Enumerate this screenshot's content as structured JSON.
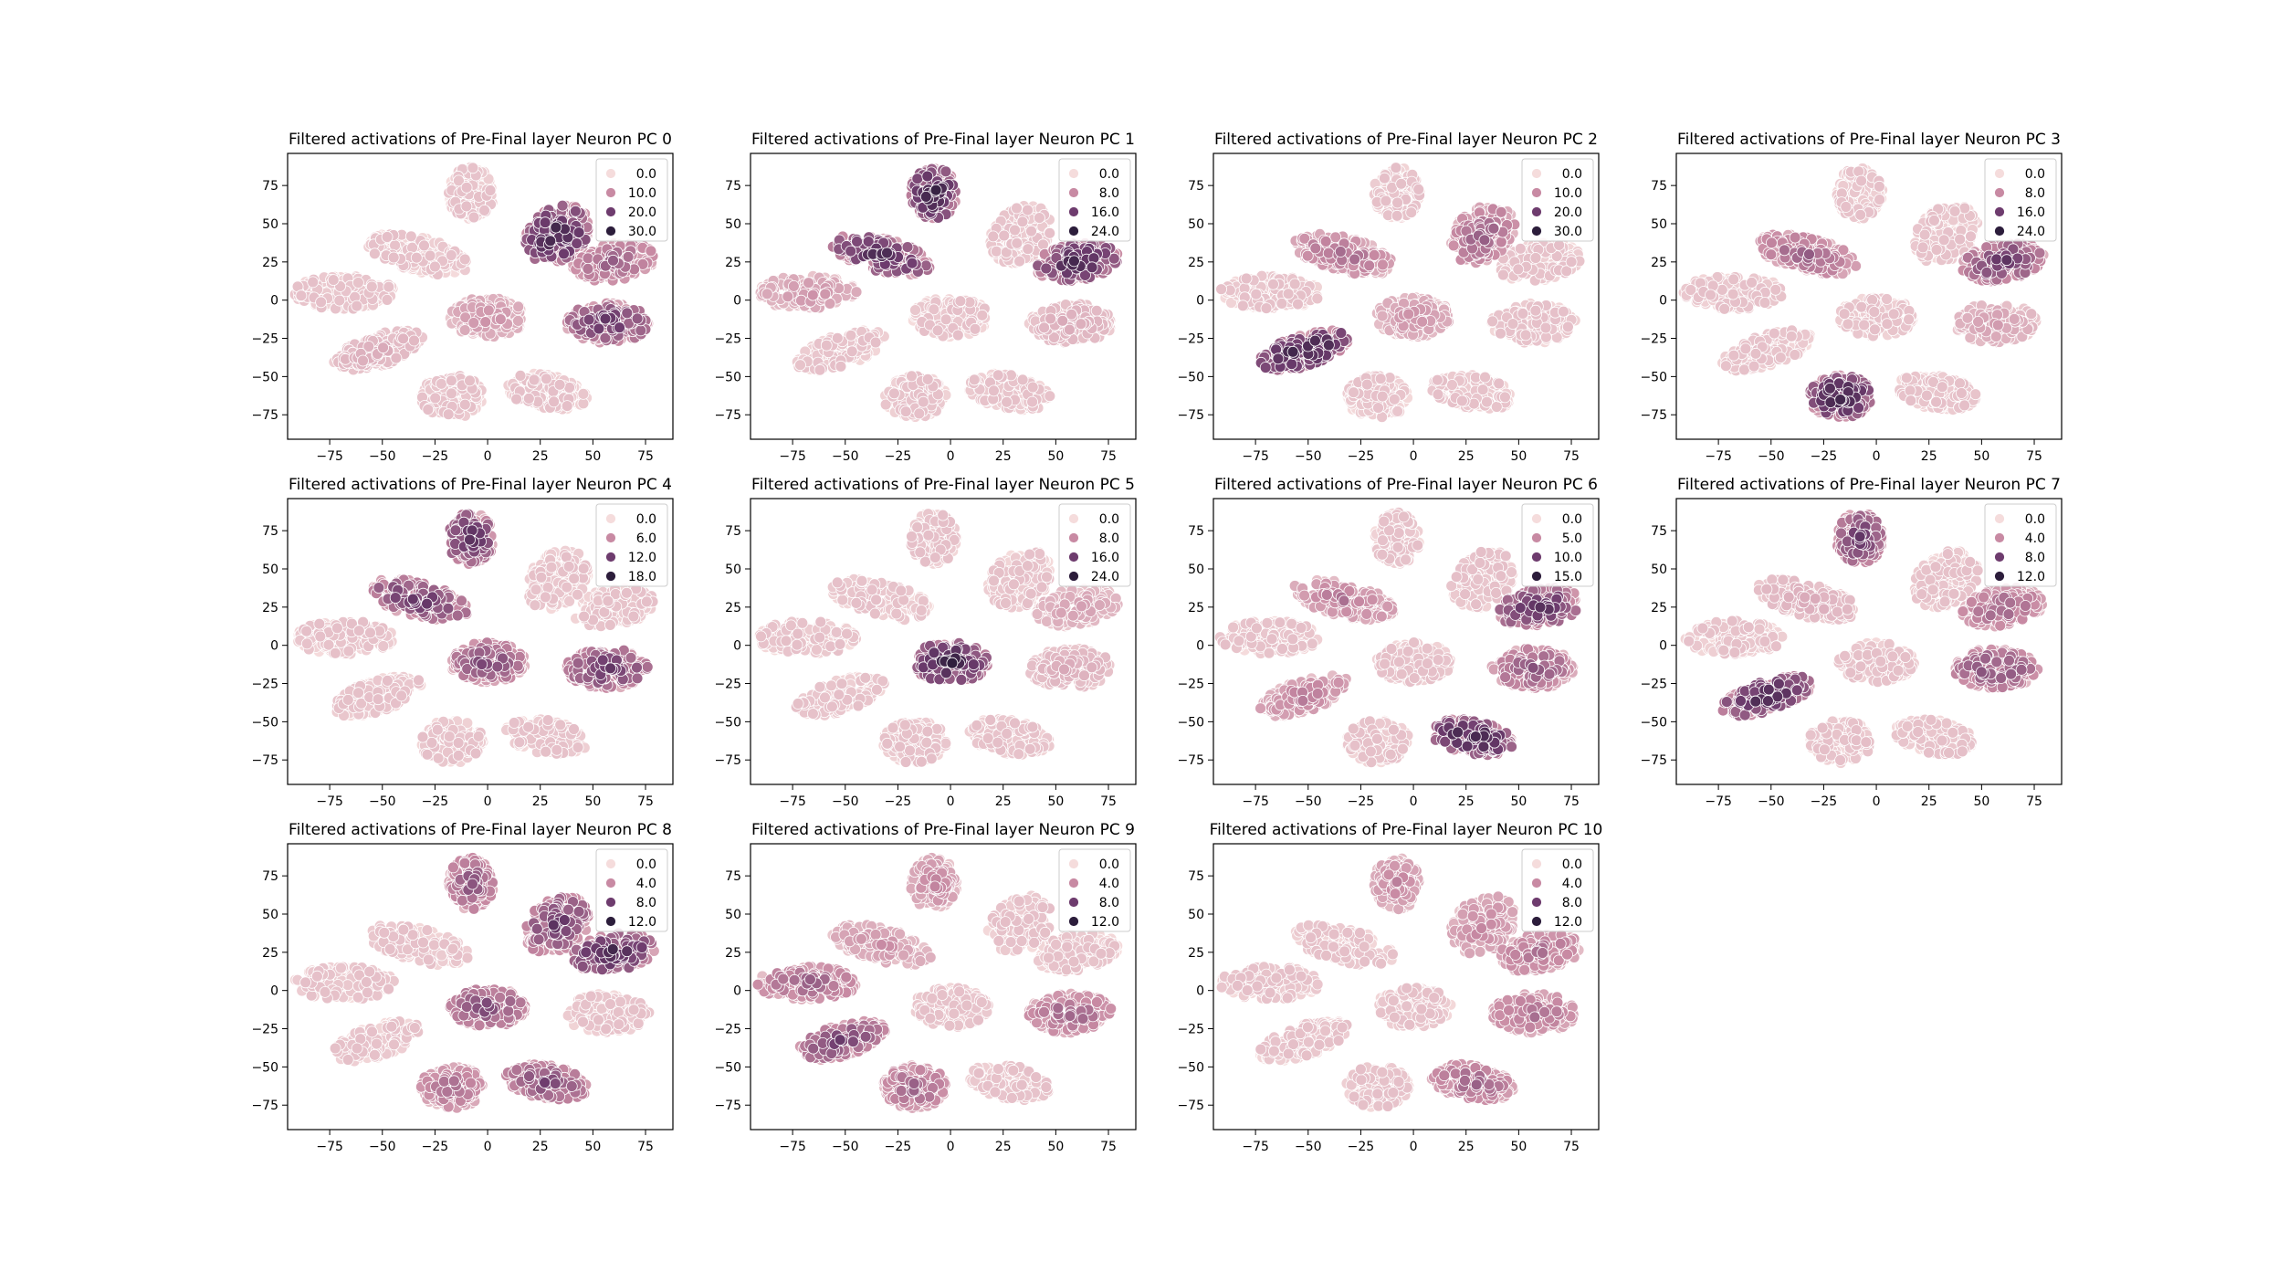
{
  "figure": {
    "columns": 4,
    "rows": 3
  },
  "colors": {
    "palette": [
      "#f5dcdc",
      "#c88aa3",
      "#6e3c6e",
      "#2c1d3b"
    ],
    "point_edge": "#ffffff",
    "axes_edge": "#000000"
  },
  "chart_data": [
    {
      "type": "scatter",
      "title": "Filtered activations of Pre-Final layer Neuron PC 0",
      "xlim": [
        -95,
        88
      ],
      "ylim": [
        -91,
        96
      ],
      "xticks": [
        -75,
        -50,
        -25,
        0,
        25,
        50,
        75
      ],
      "yticks": [
        -75,
        -50,
        -25,
        0,
        25,
        50,
        75
      ],
      "legend": {
        "position": "upper right",
        "entries": [
          "0.0",
          "10.0",
          "20.0",
          "30.0"
        ]
      },
      "hot_clusters": [
        {
          "cluster": 0,
          "level": 0.9
        },
        {
          "cluster": 8,
          "level": 0.5
        },
        {
          "cluster": 9,
          "level": 0.7
        },
        {
          "cluster": 2,
          "level": 0.3
        },
        {
          "cluster": 5,
          "level": 0.2
        }
      ]
    },
    {
      "type": "scatter",
      "title": "Filtered activations of Pre-Final layer Neuron PC 1",
      "xlim": [
        -95,
        88
      ],
      "ylim": [
        -91,
        96
      ],
      "xticks": [
        -75,
        -50,
        -25,
        0,
        25,
        50,
        75
      ],
      "yticks": [
        -75,
        -50,
        -25,
        0,
        25,
        50,
        75
      ],
      "legend": {
        "position": "upper right",
        "entries": [
          "0.0",
          "8.0",
          "16.0",
          "24.0"
        ]
      },
      "hot_clusters": [
        {
          "cluster": 1,
          "level": 0.9
        },
        {
          "cluster": 3,
          "level": 0.8
        },
        {
          "cluster": 8,
          "level": 0.85
        },
        {
          "cluster": 4,
          "level": 0.3
        },
        {
          "cluster": 9,
          "level": 0.2
        }
      ]
    },
    {
      "type": "scatter",
      "title": "Filtered activations of Pre-Final layer Neuron PC 2",
      "xlim": [
        -95,
        88
      ],
      "ylim": [
        -91,
        96
      ],
      "xticks": [
        -75,
        -50,
        -25,
        0,
        25,
        50,
        75
      ],
      "yticks": [
        -75,
        -50,
        -25,
        0,
        25,
        50,
        75
      ],
      "legend": {
        "position": "upper right",
        "entries": [
          "0.0",
          "10.0",
          "20.0",
          "30.0"
        ]
      },
      "hot_clusters": [
        {
          "cluster": 5,
          "level": 0.95
        },
        {
          "cluster": 0,
          "level": 0.5
        },
        {
          "cluster": 3,
          "level": 0.45
        },
        {
          "cluster": 2,
          "level": 0.3
        }
      ]
    },
    {
      "type": "scatter",
      "title": "Filtered activations of Pre-Final layer Neuron PC 3",
      "xlim": [
        -95,
        88
      ],
      "ylim": [
        -91,
        96
      ],
      "xticks": [
        -75,
        -50,
        -25,
        0,
        25,
        50,
        75
      ],
      "yticks": [
        -75,
        -50,
        -25,
        0,
        25,
        50,
        75
      ],
      "legend": {
        "position": "upper right",
        "entries": [
          "0.0",
          "8.0",
          "16.0",
          "24.0"
        ]
      },
      "hot_clusters": [
        {
          "cluster": 6,
          "level": 0.9
        },
        {
          "cluster": 8,
          "level": 0.7
        },
        {
          "cluster": 3,
          "level": 0.5
        },
        {
          "cluster": 9,
          "level": 0.25
        }
      ]
    },
    {
      "type": "scatter",
      "title": "Filtered activations of Pre-Final layer Neuron PC 4",
      "xlim": [
        -95,
        88
      ],
      "ylim": [
        -91,
        96
      ],
      "xticks": [
        -75,
        -50,
        -25,
        0,
        25,
        50,
        75
      ],
      "yticks": [
        -75,
        -50,
        -25,
        0,
        25,
        50,
        75
      ],
      "legend": {
        "position": "upper right",
        "entries": [
          "0.0",
          "6.0",
          "12.0",
          "18.0"
        ]
      },
      "hot_clusters": [
        {
          "cluster": 1,
          "level": 0.75
        },
        {
          "cluster": 3,
          "level": 0.7
        },
        {
          "cluster": 2,
          "level": 0.6
        },
        {
          "cluster": 9,
          "level": 0.7
        }
      ]
    },
    {
      "type": "scatter",
      "title": "Filtered activations of Pre-Final layer Neuron PC 5",
      "xlim": [
        -95,
        88
      ],
      "ylim": [
        -91,
        96
      ],
      "xticks": [
        -75,
        -50,
        -25,
        0,
        25,
        50,
        75
      ],
      "yticks": [
        -75,
        -50,
        -25,
        0,
        25,
        50,
        75
      ],
      "legend": {
        "position": "upper right",
        "entries": [
          "0.0",
          "8.0",
          "16.0",
          "24.0"
        ]
      },
      "hot_clusters": [
        {
          "cluster": 2,
          "level": 0.9
        },
        {
          "cluster": 8,
          "level": 0.25
        },
        {
          "cluster": 9,
          "level": 0.2
        }
      ]
    },
    {
      "type": "scatter",
      "title": "Filtered activations of Pre-Final layer Neuron PC 6",
      "xlim": [
        -95,
        88
      ],
      "ylim": [
        -91,
        96
      ],
      "xticks": [
        -75,
        -50,
        -25,
        0,
        25,
        50,
        75
      ],
      "yticks": [
        -75,
        -50,
        -25,
        0,
        25,
        50,
        75
      ],
      "legend": {
        "position": "upper right",
        "entries": [
          "0.0",
          "5.0",
          "10.0",
          "15.0"
        ]
      },
      "hot_clusters": [
        {
          "cluster": 7,
          "level": 0.9
        },
        {
          "cluster": 8,
          "level": 0.75
        },
        {
          "cluster": 9,
          "level": 0.55
        },
        {
          "cluster": 3,
          "level": 0.4
        },
        {
          "cluster": 5,
          "level": 0.4
        }
      ]
    },
    {
      "type": "scatter",
      "title": "Filtered activations of Pre-Final layer Neuron PC 7",
      "xlim": [
        -95,
        88
      ],
      "ylim": [
        -91,
        96
      ],
      "xticks": [
        -75,
        -50,
        -25,
        0,
        25,
        50,
        75
      ],
      "yticks": [
        -75,
        -50,
        -25,
        0,
        25,
        50,
        75
      ],
      "legend": {
        "position": "upper right",
        "entries": [
          "0.0",
          "4.0",
          "8.0",
          "12.0"
        ]
      },
      "hot_clusters": [
        {
          "cluster": 1,
          "level": 0.7
        },
        {
          "cluster": 5,
          "level": 0.85
        },
        {
          "cluster": 9,
          "level": 0.6
        },
        {
          "cluster": 8,
          "level": 0.5
        },
        {
          "cluster": 3,
          "level": 0.2
        }
      ]
    },
    {
      "type": "scatter",
      "title": "Filtered activations of Pre-Final layer Neuron PC 8",
      "xlim": [
        -95,
        88
      ],
      "ylim": [
        -91,
        96
      ],
      "xticks": [
        -75,
        -50,
        -25,
        0,
        25,
        50,
        75
      ],
      "yticks": [
        -75,
        -50,
        -25,
        0,
        25,
        50,
        75
      ],
      "legend": {
        "position": "upper right",
        "entries": [
          "0.0",
          "4.0",
          "8.0",
          "12.0"
        ]
      },
      "hot_clusters": [
        {
          "cluster": 8,
          "level": 0.85
        },
        {
          "cluster": 0,
          "level": 0.7
        },
        {
          "cluster": 1,
          "level": 0.55
        },
        {
          "cluster": 2,
          "level": 0.6
        },
        {
          "cluster": 7,
          "level": 0.6
        },
        {
          "cluster": 6,
          "level": 0.45
        }
      ]
    },
    {
      "type": "scatter",
      "title": "Filtered activations of Pre-Final layer Neuron PC 9",
      "xlim": [
        -95,
        88
      ],
      "ylim": [
        -91,
        96
      ],
      "xticks": [
        -75,
        -50,
        -25,
        0,
        25,
        50,
        75
      ],
      "yticks": [
        -75,
        -50,
        -25,
        0,
        25,
        50,
        75
      ],
      "legend": {
        "position": "upper right",
        "entries": [
          "0.0",
          "4.0",
          "8.0",
          "12.0"
        ]
      },
      "hot_clusters": [
        {
          "cluster": 4,
          "level": 0.5
        },
        {
          "cluster": 5,
          "level": 0.65
        },
        {
          "cluster": 6,
          "level": 0.5
        },
        {
          "cluster": 9,
          "level": 0.5
        },
        {
          "cluster": 1,
          "level": 0.35
        },
        {
          "cluster": 3,
          "level": 0.3
        }
      ]
    },
    {
      "type": "scatter",
      "title": "Filtered activations of Pre-Final layer Neuron PC 10",
      "xlim": [
        -95,
        88
      ],
      "ylim": [
        -91,
        96
      ],
      "xticks": [
        -75,
        -50,
        -25,
        0,
        25,
        50,
        75
      ],
      "yticks": [
        -75,
        -50,
        -25,
        0,
        25,
        50,
        75
      ],
      "legend": {
        "position": "upper right",
        "entries": [
          "0.0",
          "4.0",
          "8.0",
          "12.0"
        ]
      },
      "hot_clusters": [
        {
          "cluster": 7,
          "level": 0.5
        },
        {
          "cluster": 8,
          "level": 0.45
        },
        {
          "cluster": 9,
          "level": 0.45
        },
        {
          "cluster": 1,
          "level": 0.35
        },
        {
          "cluster": 0,
          "level": 0.35
        }
      ]
    }
  ]
}
